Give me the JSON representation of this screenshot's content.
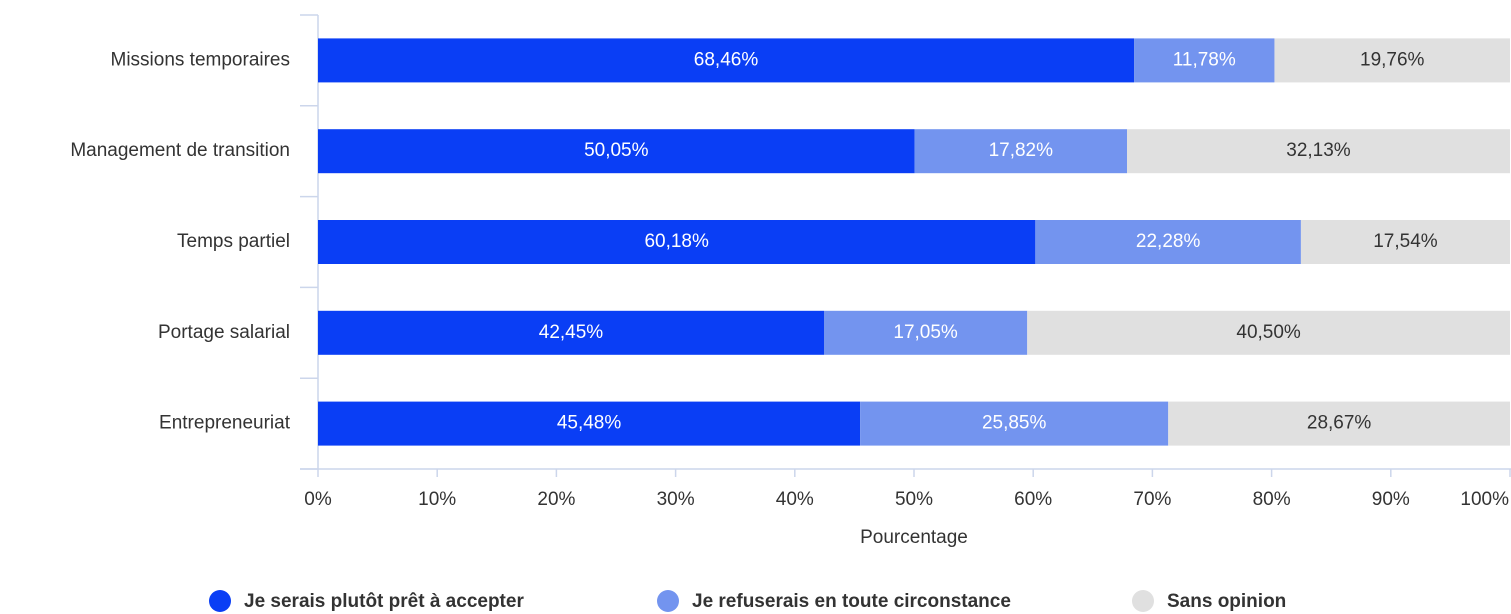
{
  "chart_data": {
    "type": "stacked_bar_horizontal",
    "categories": [
      "Missions temporaires",
      "Management de transition",
      "Temps partiel",
      "Portage salarial",
      "Entrepreneuriat"
    ],
    "series": [
      {
        "name": "Je serais plutôt prêt à accepter",
        "color": "#0a3ef5",
        "values": [
          68.46,
          50.05,
          60.18,
          42.45,
          45.48
        ],
        "value_labels": [
          "68,46%",
          "50,05%",
          "60,18%",
          "42,45%",
          "45,48%"
        ]
      },
      {
        "name": "Je refuserais en toute circonstance",
        "color": "#7394ef",
        "values": [
          11.78,
          17.82,
          22.28,
          17.05,
          25.85
        ],
        "value_labels": [
          "11,78%",
          "17,82%",
          "22,28%",
          "17,05%",
          "25,85%"
        ]
      },
      {
        "name": "Sans opinion",
        "color": "#e0e0e0",
        "values": [
          19.76,
          32.13,
          17.54,
          40.5,
          28.67
        ],
        "value_labels": [
          "19,76%",
          "32,13%",
          "17,54%",
          "40,50%",
          "28,67%"
        ]
      }
    ],
    "xlabel": "Pourcentage",
    "xlim": [
      0,
      100
    ],
    "xticks": [
      {
        "value": 0,
        "label": "0%"
      },
      {
        "value": 10,
        "label": "10%"
      },
      {
        "value": 20,
        "label": "20%"
      },
      {
        "value": 30,
        "label": "30%"
      },
      {
        "value": 40,
        "label": "40%"
      },
      {
        "value": 50,
        "label": "50%"
      },
      {
        "value": 60,
        "label": "60%"
      },
      {
        "value": 70,
        "label": "70%"
      },
      {
        "value": 80,
        "label": "80%"
      },
      {
        "value": 90,
        "label": "90%"
      },
      {
        "value": 100,
        "label": "100%"
      }
    ],
    "legend": "bottom"
  }
}
